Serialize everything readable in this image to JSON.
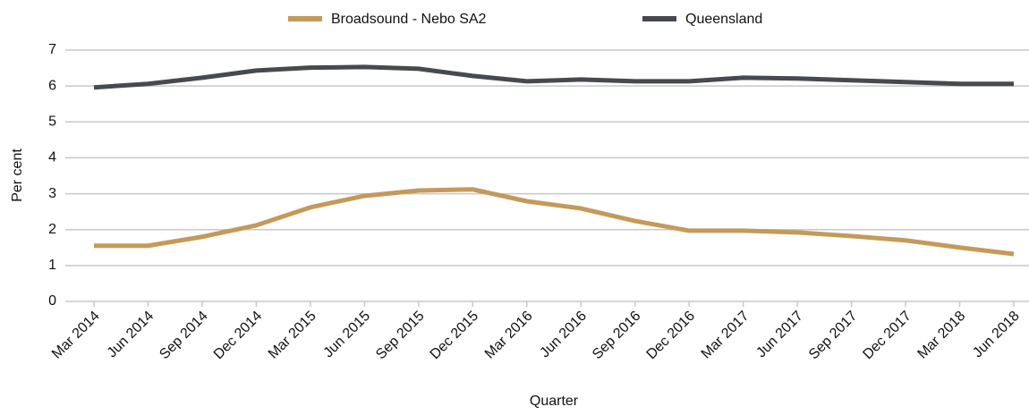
{
  "chart_data": {
    "type": "line",
    "xlabel": "Quarter",
    "ylabel": "Per cent",
    "categories": [
      "Mar 2014",
      "Jun 2014",
      "Sep 2014",
      "Dec 2014",
      "Mar 2015",
      "Jun 2015",
      "Sep 2015",
      "Dec 2015",
      "Mar 2016",
      "Jun 2016",
      "Sep 2016",
      "Dec 2016",
      "Mar 2017",
      "Jun 2017",
      "Sep 2017",
      "Dec 2017",
      "Mar 2018",
      "Jun 2018"
    ],
    "series": [
      {
        "name": "Broadsound - Nebo SA2",
        "color": "#c49a5a",
        "values": [
          1.55,
          1.55,
          1.8,
          2.12,
          2.62,
          2.94,
          3.09,
          3.12,
          2.79,
          2.59,
          2.24,
          1.97,
          1.97,
          1.92,
          1.82,
          1.7,
          1.5,
          1.32
        ]
      },
      {
        "name": "Queensland",
        "color": "#464a50",
        "values": [
          5.96,
          6.06,
          6.23,
          6.43,
          6.51,
          6.53,
          6.48,
          6.28,
          6.13,
          6.18,
          6.13,
          6.13,
          6.23,
          6.21,
          6.16,
          6.11,
          6.06,
          6.06
        ]
      }
    ],
    "ylim": [
      0,
      7
    ],
    "yticks": [
      0,
      1,
      2,
      3,
      4,
      5,
      6,
      7
    ],
    "grid": true,
    "legend": "top"
  }
}
